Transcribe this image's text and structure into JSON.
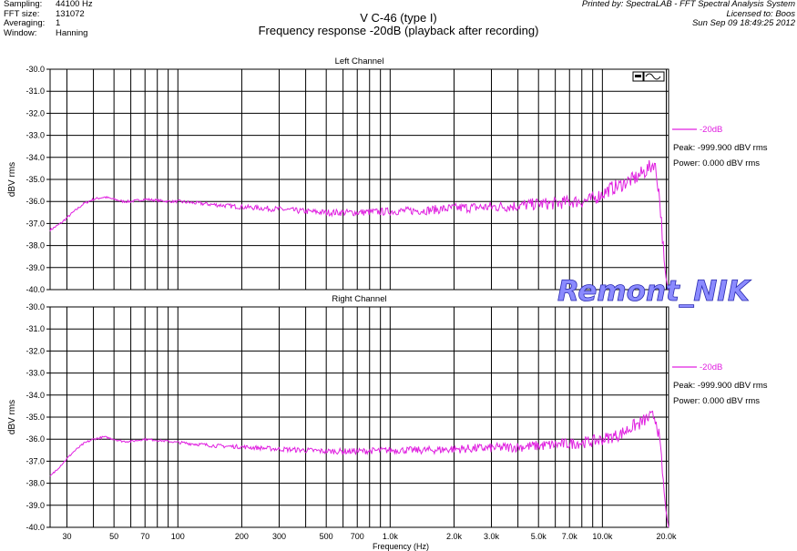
{
  "header": {
    "info_keys": [
      "Sampling:",
      "FFT size:",
      "Averaging:",
      "Window:"
    ],
    "info_values": [
      "44100 Hz",
      "131072",
      "1",
      "Hanning"
    ],
    "title": "V C-46  (type I)",
    "subtitle": "Frequency response -20dB (playback after recording)",
    "printed_by": "Printed by: SpectraLAB - FFT Spectral Analysis System",
    "licensed": "Licensed to: Boos",
    "datetime": "Sun Sep 09 18:49:25 2012"
  },
  "watermark": "Remont_NIK",
  "colors": {
    "trace": "#e020e0",
    "grid": "#000000"
  },
  "chart_data": [
    {
      "type": "line",
      "title": "Left Channel",
      "ylabel": "dBV rms",
      "xlabel": "",
      "x_scale": "log",
      "xlim": [
        25,
        20500
      ],
      "ylim": [
        -40.0,
        -30.0
      ],
      "yticks": [
        "-30.0",
        "-31.0",
        "-32.0",
        "-33.0",
        "-34.0",
        "-35.0",
        "-36.0",
        "-37.0",
        "-38.0",
        "-39.0",
        "-40.0"
      ],
      "grid": true,
      "legend": {
        "placement": "right",
        "entries": [
          "-20dB"
        ],
        "peak": "Peak: -999.900 dBV rms",
        "power": "Power: 0.000 dBV rms"
      },
      "series": [
        {
          "name": "-20dB",
          "x": [
            25,
            28,
            32,
            36,
            40,
            45,
            50,
            55,
            60,
            70,
            80,
            90,
            100,
            150,
            200,
            300,
            400,
            500,
            700,
            1000,
            1500,
            2000,
            3000,
            4000,
            5000,
            6000,
            7000,
            8000,
            9000,
            10000,
            11000,
            12000,
            13000,
            14000,
            15000,
            16000,
            17000,
            17500,
            18000,
            18500,
            19000,
            19500,
            20000,
            20500
          ],
          "y": [
            -37.3,
            -37.0,
            -36.5,
            -36.1,
            -35.9,
            -35.8,
            -35.9,
            -36.0,
            -36.0,
            -35.9,
            -35.95,
            -36.0,
            -36.0,
            -36.15,
            -36.25,
            -36.35,
            -36.45,
            -36.5,
            -36.5,
            -36.45,
            -36.4,
            -36.3,
            -36.25,
            -36.2,
            -36.1,
            -36.1,
            -36.0,
            -36.0,
            -35.9,
            -35.65,
            -35.4,
            -35.3,
            -35.1,
            -35.0,
            -34.8,
            -34.6,
            -34.4,
            -34.2,
            -34.8,
            -35.6,
            -37.0,
            -38.6,
            -39.6,
            -40.0
          ],
          "noise_db": 0.16
        }
      ]
    },
    {
      "type": "line",
      "title": "Right Channel",
      "ylabel": "dBV rms",
      "xlabel": "Frequency (Hz)",
      "x_scale": "log",
      "xlim": [
        25,
        20500
      ],
      "ylim": [
        -40.0,
        -30.0
      ],
      "yticks": [
        "-30.0",
        "-31.0",
        "-32.0",
        "-33.0",
        "-34.0",
        "-35.0",
        "-36.0",
        "-37.0",
        "-38.0",
        "-39.0",
        "-40.0"
      ],
      "xticks": [
        {
          "v": 30,
          "l": "30"
        },
        {
          "v": 50,
          "l": "50"
        },
        {
          "v": 70,
          "l": "70"
        },
        {
          "v": 100,
          "l": "100"
        },
        {
          "v": 200,
          "l": "200"
        },
        {
          "v": 300,
          "l": "300"
        },
        {
          "v": 500,
          "l": "500"
        },
        {
          "v": 700,
          "l": "700"
        },
        {
          "v": 1000,
          "l": "1.0k"
        },
        {
          "v": 2000,
          "l": "2.0k"
        },
        {
          "v": 3000,
          "l": "3.0k"
        },
        {
          "v": 5000,
          "l": "5.0k"
        },
        {
          "v": 7000,
          "l": "7.0k"
        },
        {
          "v": 10000,
          "l": "10.0k"
        },
        {
          "v": 20000,
          "l": "20.0k"
        }
      ],
      "grid": true,
      "legend": {
        "placement": "right",
        "entries": [
          "-20dB"
        ],
        "peak": "Peak: -999.900 dBV rms",
        "power": "Power: 0.000 dBV rms"
      },
      "series": [
        {
          "name": "-20dB",
          "x": [
            25,
            28,
            32,
            36,
            40,
            45,
            50,
            55,
            60,
            70,
            80,
            90,
            100,
            150,
            200,
            300,
            400,
            500,
            700,
            1000,
            1500,
            2000,
            3000,
            4000,
            5000,
            6000,
            7000,
            8000,
            9000,
            10000,
            11000,
            12000,
            13000,
            14000,
            15000,
            16000,
            17000,
            17500,
            18000,
            18500,
            19000,
            19500,
            20000,
            20500
          ],
          "y": [
            -37.7,
            -37.2,
            -36.6,
            -36.2,
            -36.0,
            -35.9,
            -36.0,
            -36.1,
            -36.1,
            -36.0,
            -36.05,
            -36.1,
            -36.15,
            -36.3,
            -36.35,
            -36.45,
            -36.5,
            -36.55,
            -36.55,
            -36.5,
            -36.5,
            -36.45,
            -36.4,
            -36.35,
            -36.3,
            -36.25,
            -36.2,
            -36.15,
            -36.1,
            -36.0,
            -35.9,
            -35.8,
            -35.6,
            -35.4,
            -35.3,
            -35.1,
            -35.0,
            -34.95,
            -35.2,
            -35.9,
            -37.0,
            -38.3,
            -39.4,
            -40.0
          ],
          "noise_db": 0.14
        }
      ]
    }
  ]
}
